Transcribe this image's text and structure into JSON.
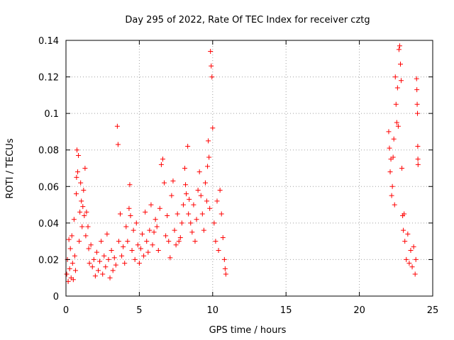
{
  "chart_data": {
    "type": "scatter",
    "title": "Day 295 of 2022, Rate Of TEC Index for receiver cztg",
    "xlabel": "GPS time / hours",
    "ylabel": "ROTI / TECUs",
    "xlim": [
      0,
      25
    ],
    "ylim": [
      0,
      0.14
    ],
    "xticks": [
      0,
      5,
      10,
      15,
      20,
      25
    ],
    "yticks": [
      0,
      0.02,
      0.04,
      0.06,
      0.08,
      0.1,
      0.12,
      0.14
    ],
    "xtick_labels": [
      "0",
      "5",
      "10",
      "15",
      "20",
      "25"
    ],
    "ytick_labels": [
      "0",
      "0.02",
      "0.04",
      "0.06",
      "0.08",
      "0.1",
      "0.12",
      "0.14"
    ],
    "grid": true,
    "marker": "+",
    "colors": {
      "series": "#ff0000",
      "grid": "#a0a0a0",
      "axis": "#000000"
    },
    "series": [
      {
        "points": [
          [
            0.05,
            0.012
          ],
          [
            0.1,
            0.02
          ],
          [
            0.15,
            0.008
          ],
          [
            0.2,
            0.031
          ],
          [
            0.25,
            0.015
          ],
          [
            0.3,
            0.026
          ],
          [
            0.35,
            0.01
          ],
          [
            0.4,
            0.033
          ],
          [
            0.45,
            0.018
          ],
          [
            0.5,
            0.009
          ],
          [
            0.55,
            0.042
          ],
          [
            0.6,
            0.022
          ],
          [
            0.65,
            0.014
          ],
          [
            0.7,
            0.056
          ],
          [
            0.72,
            0.065
          ],
          [
            0.75,
            0.08
          ],
          [
            0.8,
            0.068
          ],
          [
            0.85,
            0.077
          ],
          [
            0.9,
            0.03
          ],
          [
            0.95,
            0.046
          ],
          [
            1.0,
            0.062
          ],
          [
            1.05,
            0.052
          ],
          [
            1.1,
            0.038
          ],
          [
            1.15,
            0.049
          ],
          [
            1.2,
            0.058
          ],
          [
            1.25,
            0.044
          ],
          [
            1.3,
            0.07
          ],
          [
            1.35,
            0.033
          ],
          [
            1.4,
            0.046
          ],
          [
            1.5,
            0.038
          ],
          [
            1.55,
            0.026
          ],
          [
            1.6,
            0.018
          ],
          [
            1.7,
            0.028
          ],
          [
            1.8,
            0.016
          ],
          [
            1.9,
            0.02
          ],
          [
            2.0,
            0.011
          ],
          [
            2.1,
            0.024
          ],
          [
            2.2,
            0.014
          ],
          [
            2.3,
            0.019
          ],
          [
            2.4,
            0.03
          ],
          [
            2.5,
            0.012
          ],
          [
            2.6,
            0.022
          ],
          [
            2.7,
            0.016
          ],
          [
            2.8,
            0.034
          ],
          [
            2.9,
            0.02
          ],
          [
            3.0,
            0.01
          ],
          [
            3.1,
            0.025
          ],
          [
            3.2,
            0.014
          ],
          [
            3.3,
            0.021
          ],
          [
            3.4,
            0.017
          ],
          [
            3.5,
            0.093
          ],
          [
            3.55,
            0.083
          ],
          [
            3.6,
            0.03
          ],
          [
            3.7,
            0.045
          ],
          [
            3.8,
            0.022
          ],
          [
            3.9,
            0.027
          ],
          [
            4.0,
            0.018
          ],
          [
            4.1,
            0.038
          ],
          [
            4.2,
            0.03
          ],
          [
            4.3,
            0.048
          ],
          [
            4.35,
            0.061
          ],
          [
            4.4,
            0.044
          ],
          [
            4.5,
            0.025
          ],
          [
            4.6,
            0.036
          ],
          [
            4.7,
            0.02
          ],
          [
            4.8,
            0.04
          ],
          [
            4.9,
            0.028
          ],
          [
            5.0,
            0.018
          ],
          [
            5.1,
            0.026
          ],
          [
            5.2,
            0.034
          ],
          [
            5.3,
            0.022
          ],
          [
            5.4,
            0.046
          ],
          [
            5.5,
            0.03
          ],
          [
            5.6,
            0.024
          ],
          [
            5.7,
            0.036
          ],
          [
            5.8,
            0.05
          ],
          [
            5.9,
            0.028
          ],
          [
            6.0,
            0.035
          ],
          [
            6.1,
            0.042
          ],
          [
            6.2,
            0.038
          ],
          [
            6.3,
            0.025
          ],
          [
            6.4,
            0.048
          ],
          [
            6.5,
            0.072
          ],
          [
            6.6,
            0.075
          ],
          [
            6.7,
            0.062
          ],
          [
            6.8,
            0.033
          ],
          [
            6.9,
            0.044
          ],
          [
            7.0,
            0.03
          ],
          [
            7.1,
            0.021
          ],
          [
            7.2,
            0.055
          ],
          [
            7.3,
            0.063
          ],
          [
            7.4,
            0.036
          ],
          [
            7.5,
            0.028
          ],
          [
            7.6,
            0.045
          ],
          [
            7.7,
            0.03
          ],
          [
            7.8,
            0.032
          ],
          [
            7.9,
            0.04
          ],
          [
            8.0,
            0.05
          ],
          [
            8.1,
            0.07
          ],
          [
            8.15,
            0.061
          ],
          [
            8.2,
            0.056
          ],
          [
            8.3,
            0.082
          ],
          [
            8.35,
            0.045
          ],
          [
            8.4,
            0.053
          ],
          [
            8.5,
            0.04
          ],
          [
            8.6,
            0.035
          ],
          [
            8.7,
            0.05
          ],
          [
            8.8,
            0.03
          ],
          [
            8.9,
            0.042
          ],
          [
            9.0,
            0.058
          ],
          [
            9.1,
            0.068
          ],
          [
            9.2,
            0.055
          ],
          [
            9.3,
            0.045
          ],
          [
            9.4,
            0.036
          ],
          [
            9.5,
            0.062
          ],
          [
            9.6,
            0.052
          ],
          [
            9.65,
            0.071
          ],
          [
            9.7,
            0.085
          ],
          [
            9.75,
            0.076
          ],
          [
            9.8,
            0.048
          ],
          [
            9.85,
            0.134
          ],
          [
            9.9,
            0.126
          ],
          [
            9.95,
            0.12
          ],
          [
            10.0,
            0.092
          ],
          [
            10.1,
            0.04
          ],
          [
            10.2,
            0.03
          ],
          [
            10.3,
            0.052
          ],
          [
            10.4,
            0.025
          ],
          [
            10.5,
            0.058
          ],
          [
            10.6,
            0.045
          ],
          [
            10.7,
            0.032
          ],
          [
            10.8,
            0.02
          ],
          [
            10.85,
            0.015
          ],
          [
            10.9,
            0.012
          ],
          [
            22.0,
            0.09
          ],
          [
            22.05,
            0.081
          ],
          [
            22.1,
            0.068
          ],
          [
            22.15,
            0.075
          ],
          [
            22.2,
            0.055
          ],
          [
            22.25,
            0.06
          ],
          [
            22.3,
            0.076
          ],
          [
            22.35,
            0.086
          ],
          [
            22.4,
            0.05
          ],
          [
            22.45,
            0.12
          ],
          [
            22.5,
            0.105
          ],
          [
            22.55,
            0.095
          ],
          [
            22.6,
            0.114
          ],
          [
            22.65,
            0.093
          ],
          [
            22.7,
            0.135
          ],
          [
            22.75,
            0.137
          ],
          [
            22.8,
            0.127
          ],
          [
            22.85,
            0.118
          ],
          [
            22.9,
            0.07
          ],
          [
            22.95,
            0.044
          ],
          [
            23.0,
            0.036
          ],
          [
            23.05,
            0.045
          ],
          [
            23.1,
            0.03
          ],
          [
            23.2,
            0.02
          ],
          [
            23.3,
            0.034
          ],
          [
            23.4,
            0.018
          ],
          [
            23.5,
            0.025
          ],
          [
            23.6,
            0.016
          ],
          [
            23.7,
            0.027
          ],
          [
            23.8,
            0.012
          ],
          [
            23.85,
            0.02
          ],
          [
            23.9,
            0.119
          ],
          [
            23.92,
            0.113
          ],
          [
            23.94,
            0.105
          ],
          [
            23.96,
            0.1
          ],
          [
            23.98,
            0.082
          ],
          [
            23.99,
            0.075
          ],
          [
            24.0,
            0.072
          ]
        ]
      }
    ]
  }
}
